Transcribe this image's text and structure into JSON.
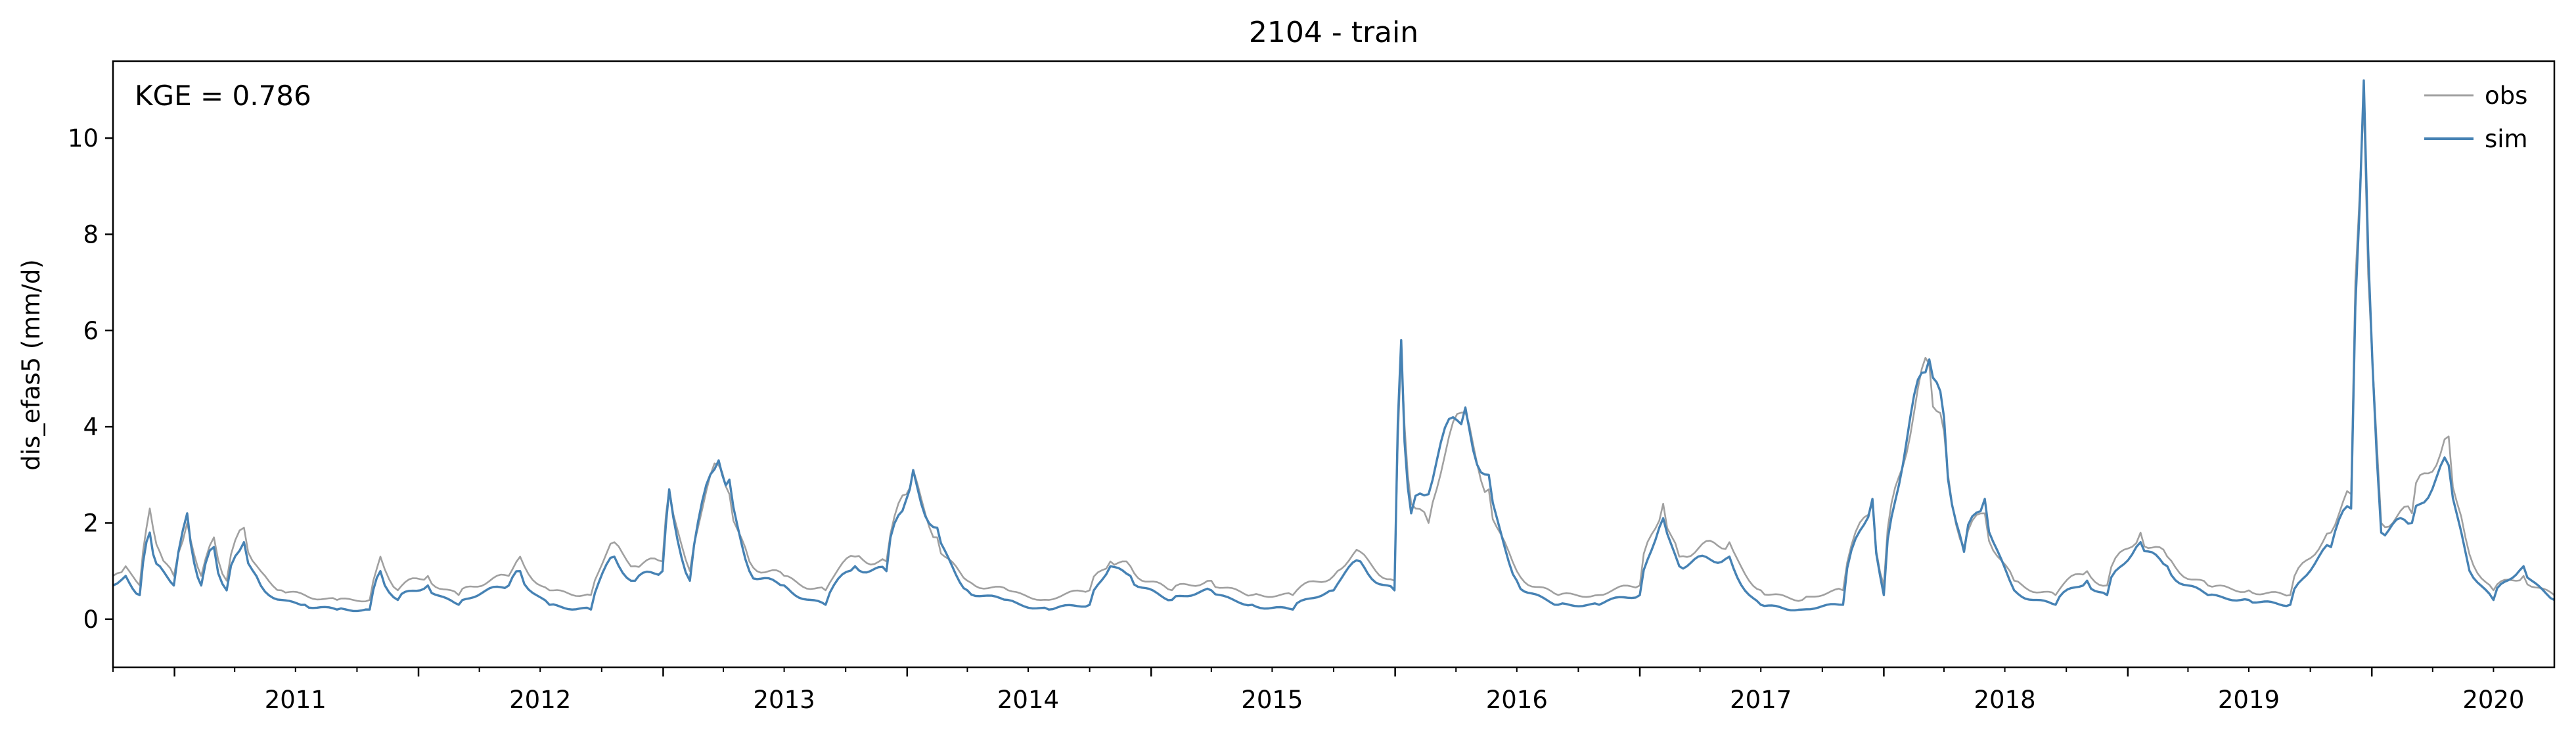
{
  "chart_data": {
    "type": "line",
    "title": "2104 - train",
    "ylabel": "dis_efas5 (mm/d)",
    "xlabel": "",
    "xlim": [
      "2010-10-01",
      "2020-09-30"
    ],
    "ylim": [
      -1,
      11.6
    ],
    "yticks": [
      0,
      2,
      4,
      6,
      8,
      10
    ],
    "xticks": [
      "2011",
      "2012",
      "2013",
      "2014",
      "2015",
      "2016",
      "2017",
      "2018",
      "2019",
      "2020"
    ],
    "annotation": "KGE = 0.786",
    "legend": {
      "placement": "upper-right"
    },
    "grid": false,
    "series": [
      {
        "name": "obs",
        "color": "#a0a0a0",
        "points": [
          [
            "2010-10-01",
            0.9
          ],
          [
            "2010-10-20",
            1.1
          ],
          [
            "2010-11-10",
            0.7
          ],
          [
            "2010-11-25",
            2.3
          ],
          [
            "2010-12-10",
            1.4
          ],
          [
            "2010-12-31",
            0.9
          ],
          [
            "2011-01-20",
            2.0
          ],
          [
            "2011-02-10",
            0.9
          ],
          [
            "2011-03-01",
            1.7
          ],
          [
            "2011-03-20",
            0.8
          ],
          [
            "2011-04-15",
            1.9
          ],
          [
            "2011-05-10",
            1.0
          ],
          [
            "2011-06-10",
            0.6
          ],
          [
            "2011-07-15",
            0.5
          ],
          [
            "2011-09-01",
            0.4
          ],
          [
            "2011-10-20",
            0.4
          ],
          [
            "2011-11-05",
            1.3
          ],
          [
            "2011-12-01",
            0.6
          ],
          [
            "2012-01-15",
            0.9
          ],
          [
            "2012-03-01",
            0.5
          ],
          [
            "2012-05-15",
            0.9
          ],
          [
            "2012-06-01",
            1.3
          ],
          [
            "2012-07-15",
            0.6
          ],
          [
            "2012-09-15",
            0.5
          ],
          [
            "2012-10-20",
            1.6
          ],
          [
            "2012-11-20",
            1.1
          ],
          [
            "2012-12-31",
            1.2
          ],
          [
            "2013-01-10",
            2.7
          ],
          [
            "2013-02-10",
            1.0
          ],
          [
            "2013-03-25",
            3.2
          ],
          [
            "2013-04-10",
            2.6
          ],
          [
            "2013-05-10",
            1.2
          ],
          [
            "2013-07-01",
            0.9
          ],
          [
            "2013-09-01",
            0.6
          ],
          [
            "2013-10-15",
            1.3
          ],
          [
            "2013-12-01",
            1.2
          ],
          [
            "2013-12-31",
            2.6
          ],
          [
            "2014-01-10",
            3.1
          ],
          [
            "2014-02-15",
            1.7
          ],
          [
            "2014-04-01",
            0.8
          ],
          [
            "2014-06-01",
            0.6
          ],
          [
            "2014-08-01",
            0.4
          ],
          [
            "2014-10-01",
            0.6
          ],
          [
            "2014-11-01",
            1.2
          ],
          [
            "2014-12-01",
            1.1
          ],
          [
            "2015-02-01",
            0.6
          ],
          [
            "2015-04-01",
            0.8
          ],
          [
            "2015-06-01",
            0.5
          ],
          [
            "2015-08-01",
            0.5
          ],
          [
            "2015-10-01",
            0.9
          ],
          [
            "2015-11-10",
            1.4
          ],
          [
            "2015-12-31",
            0.8
          ],
          [
            "2016-01-10",
            5.6
          ],
          [
            "2016-01-25",
            2.4
          ],
          [
            "2016-02-20",
            2.0
          ],
          [
            "2016-04-15",
            4.3
          ],
          [
            "2016-05-20",
            2.7
          ],
          [
            "2016-07-01",
            1.0
          ],
          [
            "2016-09-01",
            0.5
          ],
          [
            "2016-11-01",
            0.5
          ],
          [
            "2017-01-01",
            0.7
          ],
          [
            "2017-02-05",
            2.4
          ],
          [
            "2017-03-01",
            1.3
          ],
          [
            "2017-05-15",
            1.6
          ],
          [
            "2017-07-01",
            0.6
          ],
          [
            "2017-09-01",
            0.4
          ],
          [
            "2017-11-01",
            0.6
          ],
          [
            "2017-12-15",
            2.4
          ],
          [
            "2018-01-01",
            0.7
          ],
          [
            "2018-03-10",
            5.3
          ],
          [
            "2018-04-01",
            3.9
          ],
          [
            "2018-05-01",
            1.5
          ],
          [
            "2018-06-01",
            2.2
          ],
          [
            "2018-07-15",
            0.8
          ],
          [
            "2018-09-15",
            0.5
          ],
          [
            "2018-11-01",
            1.0
          ],
          [
            "2018-12-01",
            0.7
          ],
          [
            "2019-01-20",
            1.8
          ],
          [
            "2019-03-01",
            1.3
          ],
          [
            "2019-05-01",
            0.7
          ],
          [
            "2019-07-01",
            0.6
          ],
          [
            "2019-09-01",
            0.5
          ],
          [
            "2019-11-01",
            1.8
          ],
          [
            "2019-12-01",
            2.6
          ],
          [
            "2019-12-20",
            10.8
          ],
          [
            "2020-01-15",
            2.0
          ],
          [
            "2020-03-01",
            2.2
          ],
          [
            "2020-04-25",
            3.8
          ],
          [
            "2020-05-20",
            1.7
          ],
          [
            "2020-07-01",
            0.6
          ],
          [
            "2020-08-15",
            0.9
          ],
          [
            "2020-09-30",
            0.5
          ]
        ]
      },
      {
        "name": "sim",
        "color": "#4682b4",
        "points": [
          [
            "2010-10-01",
            0.7
          ],
          [
            "2010-10-20",
            0.9
          ],
          [
            "2010-11-10",
            0.5
          ],
          [
            "2010-11-25",
            1.8
          ],
          [
            "2010-12-10",
            1.1
          ],
          [
            "2010-12-31",
            0.7
          ],
          [
            "2011-01-20",
            2.2
          ],
          [
            "2011-02-10",
            0.7
          ],
          [
            "2011-03-01",
            1.5
          ],
          [
            "2011-03-20",
            0.6
          ],
          [
            "2011-04-15",
            1.6
          ],
          [
            "2011-05-10",
            0.7
          ],
          [
            "2011-06-10",
            0.4
          ],
          [
            "2011-07-15",
            0.3
          ],
          [
            "2011-09-01",
            0.2
          ],
          [
            "2011-10-20",
            0.2
          ],
          [
            "2011-11-05",
            1.0
          ],
          [
            "2011-12-01",
            0.4
          ],
          [
            "2012-01-15",
            0.7
          ],
          [
            "2012-03-01",
            0.3
          ],
          [
            "2012-05-15",
            0.7
          ],
          [
            "2012-06-01",
            1.0
          ],
          [
            "2012-07-15",
            0.3
          ],
          [
            "2012-09-15",
            0.2
          ],
          [
            "2012-10-20",
            1.3
          ],
          [
            "2012-11-20",
            0.8
          ],
          [
            "2012-12-31",
            1.0
          ],
          [
            "2013-01-10",
            2.7
          ],
          [
            "2013-02-10",
            0.8
          ],
          [
            "2013-03-25",
            3.3
          ],
          [
            "2013-04-10",
            2.9
          ],
          [
            "2013-05-10",
            1.0
          ],
          [
            "2013-07-01",
            0.7
          ],
          [
            "2013-09-01",
            0.3
          ],
          [
            "2013-10-15",
            1.1
          ],
          [
            "2013-12-01",
            1.0
          ],
          [
            "2013-12-31",
            2.5
          ],
          [
            "2014-01-10",
            3.1
          ],
          [
            "2014-02-15",
            1.9
          ],
          [
            "2014-04-01",
            0.6
          ],
          [
            "2014-06-01",
            0.4
          ],
          [
            "2014-08-01",
            0.2
          ],
          [
            "2014-10-01",
            0.3
          ],
          [
            "2014-11-01",
            1.1
          ],
          [
            "2014-12-01",
            0.9
          ],
          [
            "2015-02-01",
            0.4
          ],
          [
            "2015-04-01",
            0.6
          ],
          [
            "2015-06-01",
            0.3
          ],
          [
            "2015-08-01",
            0.2
          ],
          [
            "2015-10-01",
            0.6
          ],
          [
            "2015-11-10",
            1.2
          ],
          [
            "2015-12-31",
            0.6
          ],
          [
            "2016-01-10",
            5.8
          ],
          [
            "2016-01-25",
            2.2
          ],
          [
            "2016-02-20",
            2.6
          ],
          [
            "2016-04-15",
            4.4
          ],
          [
            "2016-05-20",
            3.0
          ],
          [
            "2016-07-01",
            0.8
          ],
          [
            "2016-09-01",
            0.3
          ],
          [
            "2016-11-01",
            0.3
          ],
          [
            "2017-01-01",
            0.5
          ],
          [
            "2017-02-05",
            2.1
          ],
          [
            "2017-03-01",
            1.1
          ],
          [
            "2017-05-15",
            1.3
          ],
          [
            "2017-07-01",
            0.3
          ],
          [
            "2017-09-01",
            0.2
          ],
          [
            "2017-11-01",
            0.3
          ],
          [
            "2017-12-15",
            2.5
          ],
          [
            "2018-01-01",
            0.5
          ],
          [
            "2018-03-10",
            5.4
          ],
          [
            "2018-04-01",
            4.2
          ],
          [
            "2018-05-01",
            1.4
          ],
          [
            "2018-06-01",
            2.5
          ],
          [
            "2018-07-15",
            0.6
          ],
          [
            "2018-09-15",
            0.3
          ],
          [
            "2018-11-01",
            0.8
          ],
          [
            "2018-12-01",
            0.5
          ],
          [
            "2019-01-20",
            1.6
          ],
          [
            "2019-03-01",
            1.1
          ],
          [
            "2019-05-01",
            0.5
          ],
          [
            "2019-07-01",
            0.4
          ],
          [
            "2019-09-01",
            0.3
          ],
          [
            "2019-11-01",
            1.5
          ],
          [
            "2019-12-01",
            2.3
          ],
          [
            "2019-12-20",
            11.2
          ],
          [
            "2020-01-15",
            1.8
          ],
          [
            "2020-03-01",
            2.0
          ],
          [
            "2020-04-25",
            3.2
          ],
          [
            "2020-05-20",
            1.4
          ],
          [
            "2020-07-01",
            0.4
          ],
          [
            "2020-08-15",
            1.1
          ],
          [
            "2020-09-30",
            0.4
          ]
        ]
      }
    ]
  }
}
